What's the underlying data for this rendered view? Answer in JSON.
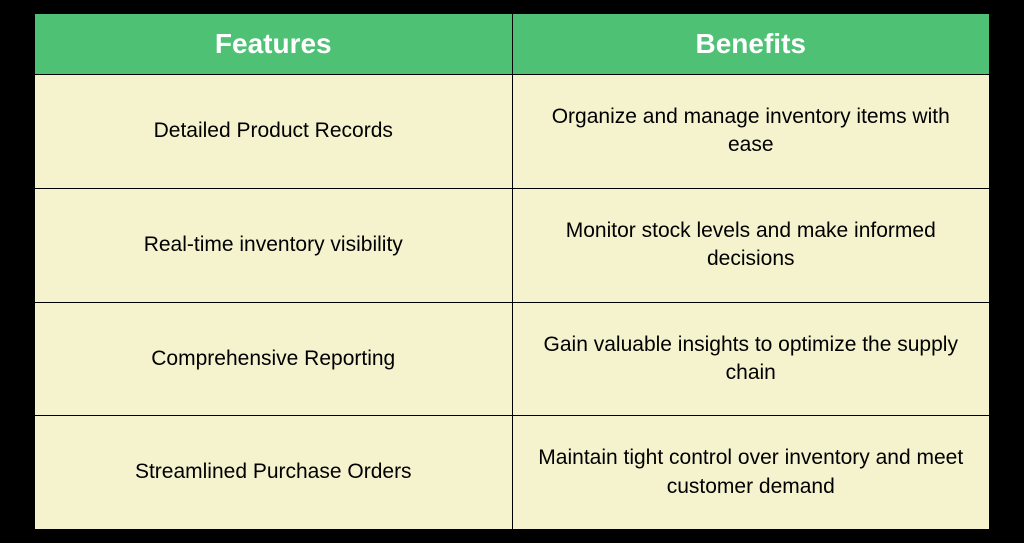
{
  "table": {
    "type": "table",
    "header_bg": "#4ec174",
    "header_text_color": "#ffffff",
    "header_fontsize": 28,
    "cell_bg": "#f5f2ce",
    "cell_text_color": "#000000",
    "cell_fontsize": 21,
    "border_color": "#000000",
    "page_bg": "#000000",
    "columns": [
      "Features",
      "Benefits"
    ],
    "rows": [
      {
        "feature": "Detailed Product Records",
        "benefit": "Organize and manage inventory items with ease"
      },
      {
        "feature": "Real-time inventory visibility",
        "benefit": "Monitor stock levels and make informed decisions"
      },
      {
        "feature": "Comprehensive Reporting",
        "benefit": "Gain valuable insights to optimize the supply chain"
      },
      {
        "feature": "Streamlined Purchase Orders",
        "benefit": "Maintain tight control over inventory and meet customer demand"
      }
    ]
  }
}
